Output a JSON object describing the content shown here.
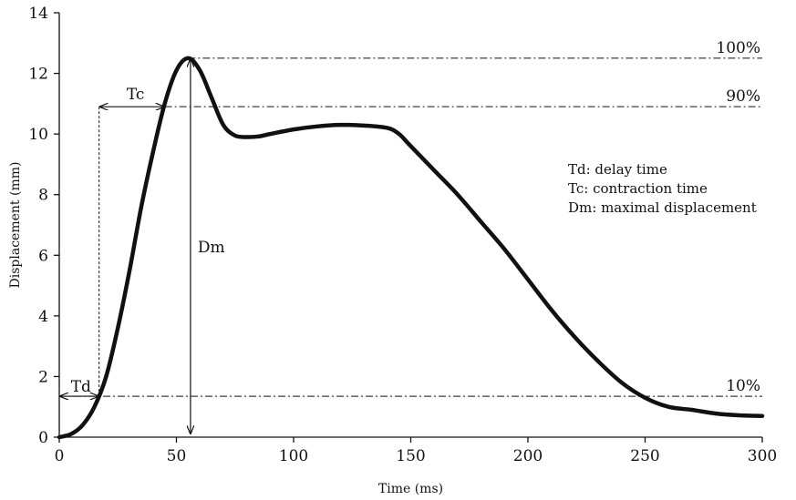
{
  "chart_data": {
    "type": "line",
    "xlabel": "Time (ms)",
    "ylabel": "Displacement (mm)",
    "xlim": [
      0,
      300
    ],
    "ylim": [
      0,
      14
    ],
    "xticks": [
      0,
      50,
      100,
      150,
      200,
      250,
      300
    ],
    "yticks": [
      0,
      2,
      4,
      6,
      8,
      10,
      12,
      14
    ],
    "grid": false,
    "series": [
      {
        "x": [
          0,
          5,
          10,
          15,
          20,
          25,
          30,
          35,
          40,
          45,
          50,
          55,
          60,
          65,
          70,
          75,
          80,
          85,
          90,
          100,
          110,
          120,
          130,
          140,
          145,
          150,
          160,
          170,
          180,
          190,
          200,
          210,
          220,
          230,
          240,
          250,
          260,
          270,
          280,
          290,
          300
        ],
        "y": [
          0.0,
          0.1,
          0.4,
          1.0,
          2.0,
          3.6,
          5.5,
          7.6,
          9.4,
          11.0,
          12.1,
          12.5,
          12.1,
          11.2,
          10.3,
          9.95,
          9.9,
          9.92,
          10.0,
          10.15,
          10.25,
          10.3,
          10.28,
          10.2,
          10.0,
          9.6,
          8.8,
          8.0,
          7.1,
          6.2,
          5.2,
          4.2,
          3.3,
          2.5,
          1.8,
          1.3,
          1.0,
          0.9,
          0.78,
          0.72,
          0.7
        ]
      }
    ],
    "reference_lines": [
      {
        "label": "100%",
        "y": 12.5,
        "x_start": 55
      },
      {
        "label": "90%",
        "y": 10.9,
        "x_start": 45
      },
      {
        "label": "10%",
        "y": 1.35,
        "x_start": 0
      }
    ],
    "annotations": {
      "td": {
        "label": "Td",
        "x_from": 0,
        "x_to": 17,
        "y": 1.35
      },
      "tc": {
        "label": "Tc",
        "x_from": 17,
        "x_to": 45,
        "y": 10.9
      },
      "dm": {
        "label": "Dm",
        "x": 56,
        "y_from": 0,
        "y_to": 12.5
      }
    },
    "legend": [
      "Td: delay time",
      "Tc: contraction time",
      "Dm: maximal displacement"
    ]
  }
}
